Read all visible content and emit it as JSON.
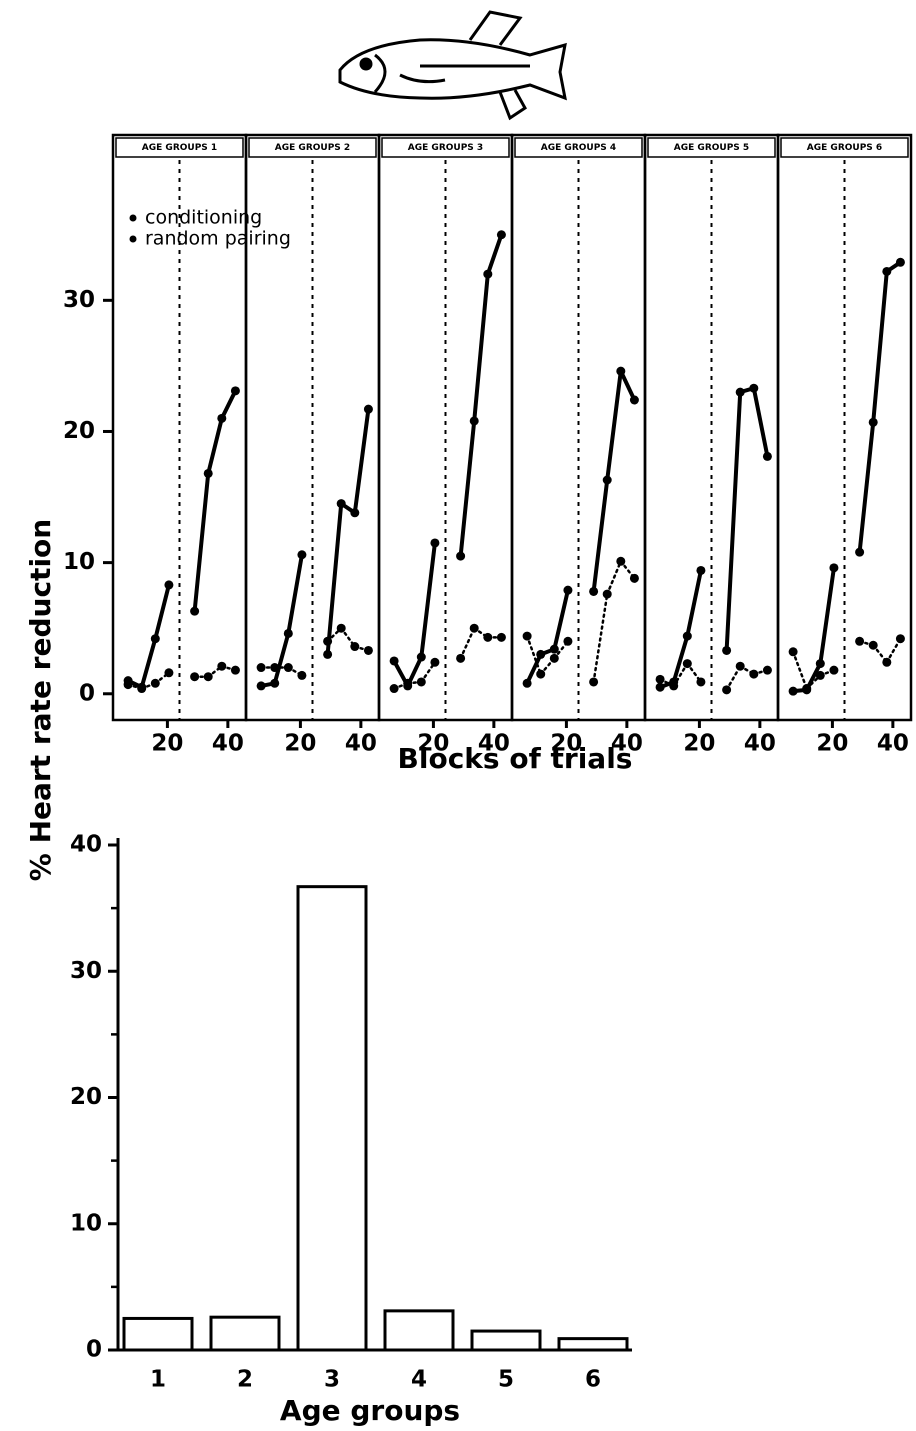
{
  "chart_data": [
    {
      "type": "line-panels",
      "x_label": "Blocks of trials",
      "y_label": "% Heart rate reduction",
      "legend": [
        "conditioning",
        "random pairing"
      ],
      "x": [
        7,
        11.5,
        16,
        20.5,
        29,
        33.5,
        38,
        42.5
      ],
      "xlim": [
        2,
        46
      ],
      "xticks": [
        20,
        40
      ],
      "ylim": [
        -2,
        40.7
      ],
      "yticks": [
        0,
        10,
        20,
        30
      ],
      "divider_x": 24,
      "panels": [
        {
          "title": "AGE GROUPS 1",
          "series": [
            {
              "values": [
                1.0,
                0.5,
                4.2,
                8.3,
                6.3,
                16.8,
                21,
                23.1
              ]
            },
            {
              "values": [
                0.7,
                0.4,
                0.8,
                1.6,
                1.3,
                1.3,
                2.1,
                1.8
              ]
            }
          ]
        },
        {
          "title": "AGE GROUPS 2",
          "series": [
            {
              "values": [
                0.6,
                0.8,
                4.6,
                10.6,
                3.0,
                14.5,
                13.8,
                21.7
              ]
            },
            {
              "values": [
                2.0,
                2.0,
                2.0,
                1.4,
                4.0,
                5.0,
                3.6,
                3.3
              ]
            }
          ]
        },
        {
          "title": "AGE GROUPS 3",
          "series": [
            {
              "values": [
                2.5,
                0.6,
                2.8,
                11.5,
                10.5,
                20.8,
                32,
                35
              ]
            },
            {
              "values": [
                0.4,
                0.8,
                0.9,
                2.4,
                2.7,
                5.0,
                4.3,
                4.3
              ]
            }
          ]
        },
        {
          "title": "AGE GROUPS 4",
          "series": [
            {
              "values": [
                0.8,
                3.0,
                3.4,
                7.9,
                7.8,
                16.3,
                24.6,
                22.4
              ]
            },
            {
              "values": [
                4.4,
                1.5,
                2.7,
                4.0,
                0.9,
                7.6,
                10.1,
                8.8
              ]
            }
          ]
        },
        {
          "title": "AGE GROUPS 5",
          "series": [
            {
              "values": [
                0.5,
                0.9,
                4.4,
                9.4,
                3.3,
                23,
                23.3,
                18.1
              ]
            },
            {
              "values": [
                1.1,
                0.6,
                2.3,
                0.9,
                0.3,
                2.1,
                1.5,
                1.8
              ]
            }
          ]
        },
        {
          "title": "AGE GROUPS 6",
          "series": [
            {
              "values": [
                0.2,
                0.3,
                2.3,
                9.6,
                10.8,
                20.7,
                32.2,
                32.9
              ]
            },
            {
              "values": [
                3.2,
                0.4,
                1.4,
                1.8,
                4.0,
                3.7,
                2.4,
                4.2
              ]
            }
          ]
        }
      ]
    },
    {
      "type": "bar",
      "x_label": "Age groups",
      "categories": [
        "1",
        "2",
        "3",
        "4",
        "5",
        "6"
      ],
      "values": [
        2.5,
        2.6,
        36.7,
        3.1,
        1.5,
        0.9
      ],
      "ylim": [
        0,
        40
      ],
      "yticks": [
        0,
        10,
        20,
        30,
        40
      ],
      "yminor": [
        5,
        15,
        25,
        35
      ]
    }
  ]
}
